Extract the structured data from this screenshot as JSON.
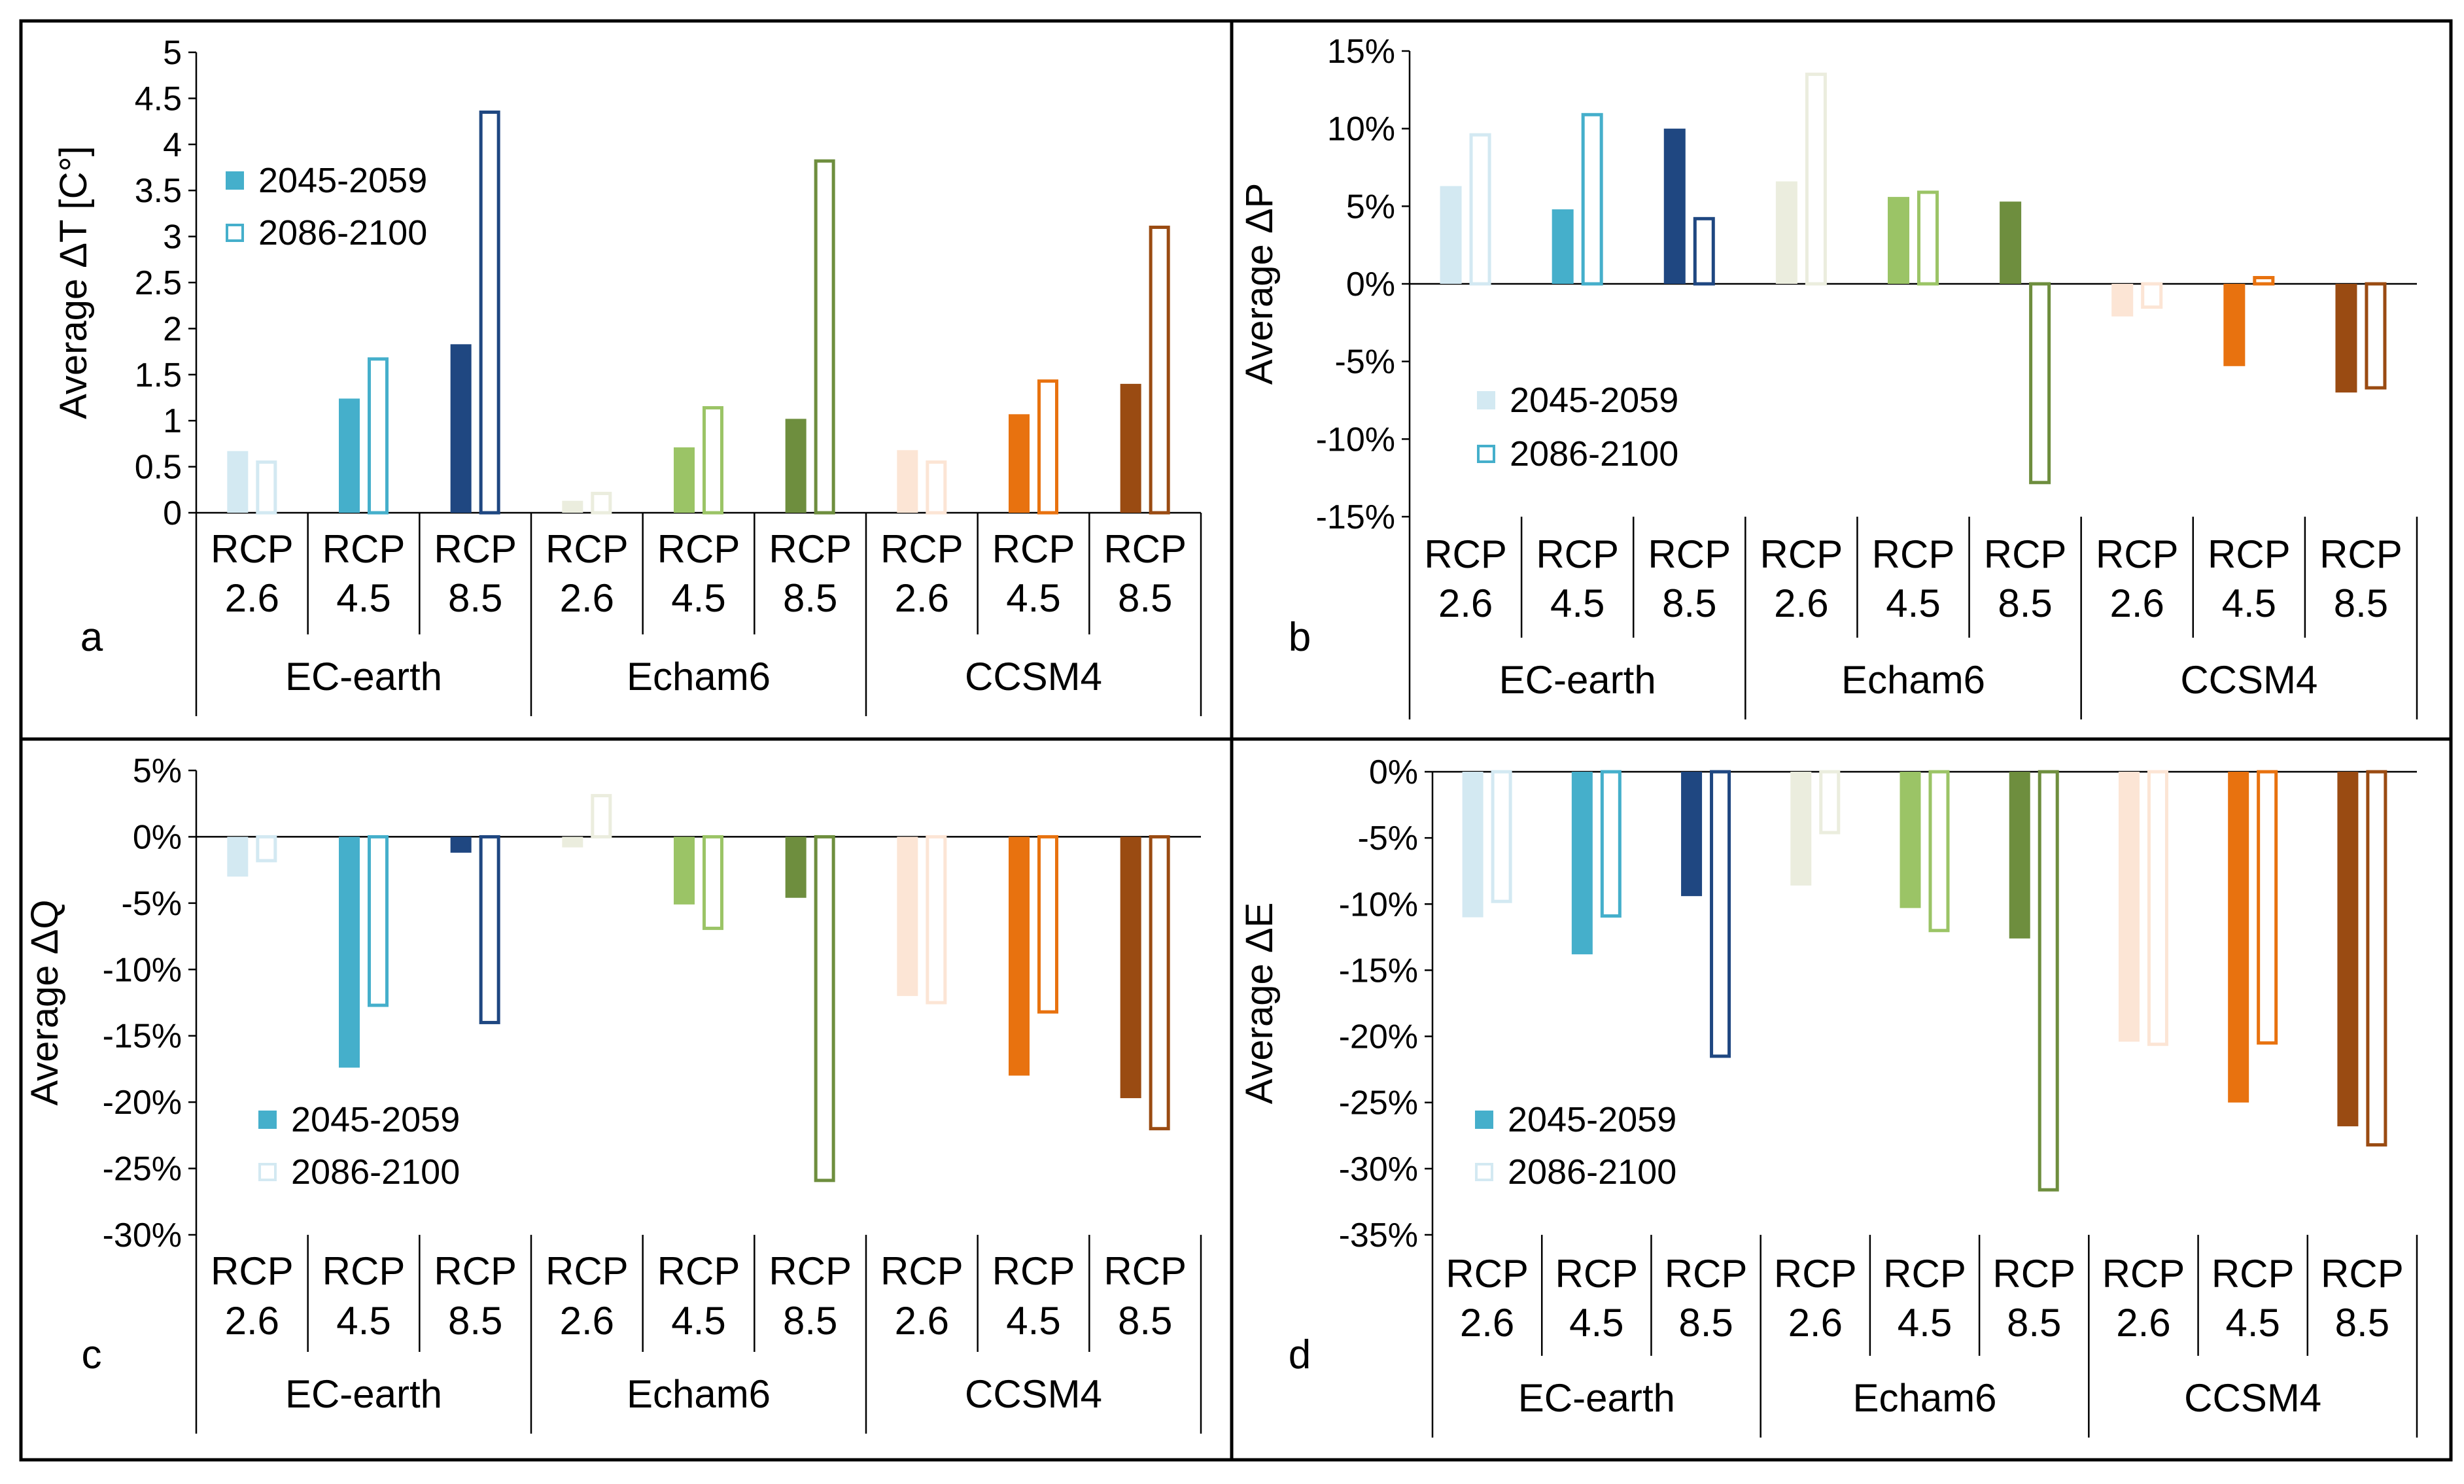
{
  "figure": {
    "models": [
      "EC-earth",
      "Echam6",
      "CCSM4"
    ],
    "scenario_word": "RCP",
    "scenarios": [
      "2.6",
      "4.5",
      "8.5"
    ],
    "legend": [
      "2045-2059",
      "2086-2100"
    ],
    "colors": {
      "EC-earth": [
        "#d3e9f2",
        "#45afcb",
        "#1f4781"
      ],
      "Echam6": [
        "#ebedde",
        "#9bc466",
        "#6e8e3e"
      ],
      "CCSM4": [
        "#fce5d5",
        "#e8720f",
        "#9a4b12"
      ]
    }
  },
  "chart_data": [
    {
      "panel": "a",
      "type": "bar",
      "ylabel": "Average ΔT [C°]",
      "ylim": [
        0,
        5
      ],
      "yticks": [
        "0",
        "0.5",
        "1",
        "1.5",
        "2",
        "2.5",
        "3",
        "3.5",
        "4",
        "4.5",
        "5"
      ],
      "legend_position": "upper-left",
      "series": [
        {
          "name": "2045-2059",
          "values": [
            0.67,
            1.24,
            1.83,
            0.13,
            0.71,
            1.02,
            0.68,
            1.07,
            1.4
          ]
        },
        {
          "name": "2086-2100",
          "values": [
            0.55,
            1.67,
            4.35,
            0.21,
            1.14,
            3.82,
            0.55,
            1.43,
            3.1
          ]
        }
      ]
    },
    {
      "panel": "b",
      "type": "bar",
      "ylabel": "Average ΔP",
      "ylim": [
        -15,
        15
      ],
      "yticks": [
        "-15%",
        "-10%",
        "-5%",
        "0%",
        "5%",
        "10%",
        "15%"
      ],
      "legend_position": "lower-left",
      "series": [
        {
          "name": "2045-2059",
          "values": [
            6.3,
            4.8,
            10.0,
            6.6,
            5.6,
            5.3,
            -2.1,
            -5.3,
            -7.0
          ]
        },
        {
          "name": "2086-2100",
          "values": [
            9.6,
            10.9,
            4.2,
            13.5,
            5.9,
            -12.8,
            -1.5,
            0.4,
            -6.7
          ]
        }
      ]
    },
    {
      "panel": "c",
      "type": "bar",
      "ylabel": "Average ΔQ",
      "ylim": [
        -30,
        5
      ],
      "yticks": [
        "-30%",
        "-25%",
        "-20%",
        "-15%",
        "-10%",
        "-5%",
        "0%",
        "5%"
      ],
      "legend_position": "lower-left",
      "series": [
        {
          "name": "2045-2059",
          "values": [
            -3.0,
            -17.4,
            -1.2,
            -0.8,
            -5.1,
            -4.6,
            -12.0,
            -18.0,
            -19.7
          ]
        },
        {
          "name": "2086-2100",
          "values": [
            -1.8,
            -12.7,
            -14.0,
            3.1,
            -6.9,
            -25.9,
            -12.5,
            -13.2,
            -22.0
          ]
        }
      ]
    },
    {
      "panel": "d",
      "type": "bar",
      "ylabel": "Average ΔE",
      "ylim": [
        -35,
        0
      ],
      "yticks": [
        "-35%",
        "-30%",
        "-25%",
        "-20%",
        "-15%",
        "-10%",
        "-5%",
        "0%"
      ],
      "legend_position": "lower-left",
      "series": [
        {
          "name": "2045-2059",
          "values": [
            -11.0,
            -13.8,
            -9.4,
            -8.6,
            -10.3,
            -12.6,
            -20.4,
            -25.0,
            -26.8
          ]
        },
        {
          "name": "2086-2100",
          "values": [
            -9.8,
            -10.9,
            -21.5,
            -4.6,
            -12.0,
            -31.6,
            -20.6,
            -20.5,
            -28.2
          ]
        }
      ]
    }
  ]
}
